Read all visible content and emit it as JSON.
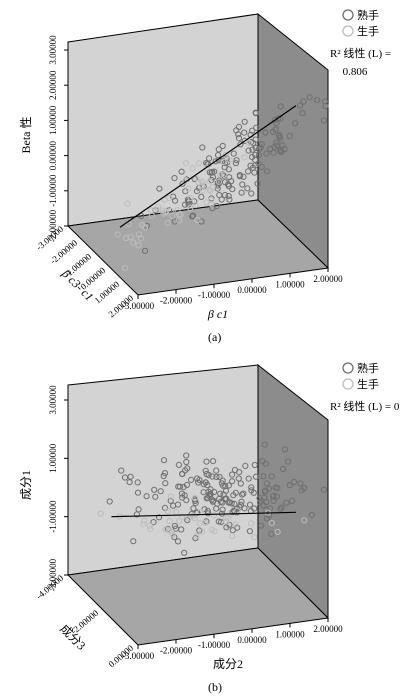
{
  "figure": {
    "captions": [
      "(a)",
      "(b)"
    ]
  },
  "chart_data": [
    {
      "type": "scatter",
      "panel": "(a)",
      "projection": "3d",
      "legend": {
        "placement": "top-right",
        "entries": [
          {
            "label": "熟手",
            "color": "#6f6f6f"
          },
          {
            "label": "生手",
            "color": "#bdbdbd"
          }
        ],
        "fit_label": "R² 线性 (L) =",
        "fit_value": "0.806"
      },
      "axes": {
        "x": {
          "label": "β c1",
          "ticks": [
            "-3.00000",
            "-2.00000",
            "-1.00000",
            "0.00000",
            "1.00000",
            "2.00000"
          ],
          "range": [
            -3,
            2
          ]
        },
        "y": {
          "label": "Beta 性",
          "ticks": [
            "-2.00000",
            "-1.00000",
            "0.00000",
            "1.00000",
            "2.00000",
            "3.00000"
          ],
          "range": [
            -2,
            3
          ]
        },
        "z": {
          "label": "β c3- c1",
          "ticks": [
            "-3.00000",
            "-2.00000",
            "-1.00000",
            "0.00000",
            "1.00000",
            "2.00000"
          ],
          "range": [
            -3,
            2
          ]
        }
      },
      "fit_line": {
        "x": [
          -2.5,
          1.9
        ],
        "y": [
          -1.6,
          2.2
        ]
      },
      "series": [
        {
          "name": "熟手",
          "color": "#6f6f6f",
          "center": [
            0.3,
            0.3
          ],
          "spread": [
            0.9,
            0.55
          ],
          "n": 150,
          "slope": 0.82
        },
        {
          "name": "生手",
          "color": "#bdbdbd",
          "center": [
            -0.9,
            -0.7
          ],
          "spread": [
            0.8,
            0.45
          ],
          "n": 60,
          "slope": 0.82
        }
      ]
    },
    {
      "type": "scatter",
      "panel": "(b)",
      "projection": "3d",
      "legend": {
        "placement": "top-right",
        "entries": [
          {
            "label": "熟手",
            "color": "#6f6f6f"
          },
          {
            "label": "生手",
            "color": "#bdbdbd"
          }
        ],
        "fit_label": "R² 线性 (L) = 0"
      },
      "axes": {
        "x": {
          "label": "成分2",
          "ticks": [
            "-3.00000",
            "-2.00000",
            "-1.00000",
            "0.00000",
            "1.00000",
            "2.00000"
          ],
          "range": [
            -3,
            2
          ]
        },
        "y": {
          "label": "成分1",
          "ticks": [
            "-3.00000",
            "-1.00000",
            "1.00000",
            "3.00000"
          ],
          "range": [
            -3,
            3
          ]
        },
        "z": {
          "label": "成分3",
          "ticks": [
            "-4.00000",
            "-2.00000",
            "0.00000"
          ],
          "range": [
            -4,
            0
          ]
        }
      },
      "fit_line": {
        "x": [
          -2.6,
          1.9
        ],
        "y": [
          -1.0,
          -0.8
        ]
      },
      "series": [
        {
          "name": "熟手",
          "color": "#6f6f6f",
          "center": [
            0.1,
            0.0
          ],
          "spread": [
            1.0,
            0.85
          ],
          "n": 190,
          "slope": 0.0
        },
        {
          "name": "生手",
          "color": "#bdbdbd",
          "center": [
            -0.4,
            -1.2
          ],
          "spread": [
            0.9,
            0.5
          ],
          "n": 40,
          "slope": 0.0
        }
      ]
    }
  ]
}
